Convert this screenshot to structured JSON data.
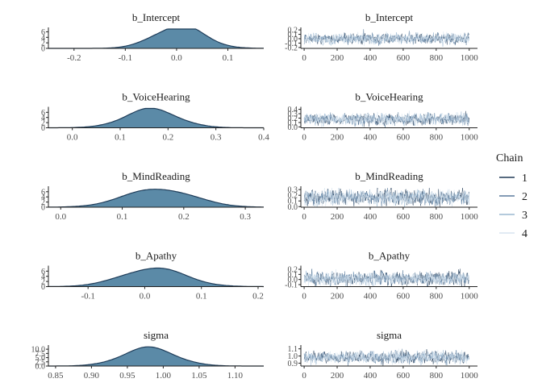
{
  "legend": {
    "title": "Chain",
    "items": [
      {
        "label": "1",
        "color": "#203a56"
      },
      {
        "label": "2",
        "color": "#5b7c9d"
      },
      {
        "label": "3",
        "color": "#9bb8d1"
      },
      {
        "label": "4",
        "color": "#d7e4ef"
      }
    ]
  },
  "colors": {
    "density_fill": "#5b8aa7",
    "density_line": "#1f3d5a",
    "axis": "#222222"
  },
  "chart_data": [
    {
      "type": "area",
      "panel": "density",
      "title": "b_Intercept",
      "mean": 0.005,
      "sd": 0.048,
      "xlim": [
        -0.25,
        0.17
      ],
      "xticks": [
        -0.2,
        -0.1,
        0.0,
        0.1
      ],
      "xtick_labels": [
        "-0.2",
        "-0.1",
        "0.0",
        "0.1"
      ],
      "ylim": [
        0,
        7
      ],
      "yticks": [
        0,
        2,
        4,
        6
      ],
      "ytick_labels": [
        "0",
        "2",
        "4",
        "6"
      ]
    },
    {
      "type": "line",
      "panel": "trace",
      "title": "b_Intercept",
      "center": 0.0,
      "spread": 0.055,
      "xlim": [
        -20,
        1050
      ],
      "xticks": [
        0,
        200,
        400,
        600,
        800,
        1000
      ],
      "xtick_labels": [
        "0",
        "200",
        "400",
        "600",
        "800",
        "1000"
      ],
      "ylim": [
        -0.22,
        0.22
      ],
      "yticks": [
        -0.2,
        -0.1,
        0.0,
        0.1,
        0.2
      ],
      "ytick_labels": [
        "-0.2",
        "-0.1",
        "0.0",
        "0.1",
        "0.2"
      ]
    },
    {
      "type": "area",
      "panel": "density",
      "title": "b_VoiceHearing",
      "mean": 0.165,
      "sd": 0.055,
      "xlim": [
        -0.05,
        0.4
      ],
      "xticks": [
        0.0,
        0.1,
        0.2,
        0.3,
        0.4
      ],
      "xtick_labels": [
        "0.0",
        "0.1",
        "0.2",
        "0.3",
        "0.4"
      ],
      "ylim": [
        0,
        7.5
      ],
      "yticks": [
        0,
        2,
        4,
        6
      ],
      "ytick_labels": [
        "0",
        "2",
        "4",
        "6"
      ]
    },
    {
      "type": "line",
      "panel": "trace",
      "title": "b_VoiceHearing",
      "center": 0.17,
      "spread": 0.06,
      "xlim": [
        -20,
        1050
      ],
      "xticks": [
        0,
        200,
        400,
        600,
        800,
        1000
      ],
      "xtick_labels": [
        "0",
        "200",
        "400",
        "600",
        "800",
        "1000"
      ],
      "ylim": [
        -0.02,
        0.42
      ],
      "yticks": [
        0.0,
        0.1,
        0.2,
        0.3,
        0.4
      ],
      "ytick_labels": [
        "0.0",
        "0.1",
        "0.2",
        "0.3",
        "0.4"
      ]
    },
    {
      "type": "area",
      "panel": "density",
      "title": "b_MindReading",
      "mean": 0.16,
      "sd": 0.055,
      "xlim": [
        -0.02,
        0.33
      ],
      "xticks": [
        0.0,
        0.1,
        0.2,
        0.3
      ],
      "xtick_labels": [
        "0.0",
        "0.1",
        "0.2",
        "0.3"
      ],
      "ylim": [
        0,
        7.5
      ],
      "yticks": [
        0,
        2,
        4,
        6
      ],
      "ytick_labels": [
        "0",
        "2",
        "4",
        "6"
      ]
    },
    {
      "type": "line",
      "panel": "trace",
      "title": "b_MindReading",
      "center": 0.16,
      "spread": 0.06,
      "xlim": [
        -20,
        1050
      ],
      "xticks": [
        0,
        200,
        400,
        600,
        800,
        1000
      ],
      "xtick_labels": [
        "0",
        "200",
        "400",
        "600",
        "800",
        "1000"
      ],
      "ylim": [
        -0.01,
        0.33
      ],
      "yticks": [
        0.0,
        0.1,
        0.2,
        0.3
      ],
      "ytick_labels": [
        "0.0",
        "0.1",
        "0.2",
        "0.3"
      ]
    },
    {
      "type": "area",
      "panel": "density",
      "title": "b_Apathy",
      "mean": 0.015,
      "sd": 0.055,
      "xlim": [
        -0.17,
        0.21
      ],
      "xticks": [
        -0.1,
        0.0,
        0.1,
        0.2
      ],
      "xtick_labels": [
        "-0.1",
        "0.0",
        "0.1",
        "0.2"
      ],
      "ylim": [
        0,
        7.5
      ],
      "yticks": [
        0,
        2,
        4,
        6
      ],
      "ytick_labels": [
        "0",
        "2",
        "4",
        "6"
      ]
    },
    {
      "type": "line",
      "panel": "trace",
      "title": "b_Apathy",
      "center": 0.015,
      "spread": 0.06,
      "xlim": [
        -20,
        1050
      ],
      "xticks": [
        0,
        200,
        400,
        600,
        800,
        1000
      ],
      "xtick_labels": [
        "0",
        "200",
        "400",
        "600",
        "800",
        "1000"
      ],
      "ylim": [
        -0.14,
        0.24
      ],
      "yticks": [
        -0.1,
        0.0,
        0.1,
        0.2
      ],
      "ytick_labels": [
        "-0.1",
        "0.0",
        "0.1",
        "0.2"
      ]
    },
    {
      "type": "area",
      "panel": "density",
      "title": "sigma",
      "mean": 0.98,
      "sd": 0.037,
      "xlim": [
        0.84,
        1.14
      ],
      "xticks": [
        0.85,
        0.9,
        0.95,
        1.0,
        1.05,
        1.1
      ],
      "xtick_labels": [
        "0.85",
        "0.90",
        "0.95",
        "1.00",
        "1.05",
        "1.10"
      ],
      "ylim": [
        0,
        11.5
      ],
      "yticks": [
        0.0,
        2.5,
        5.0,
        7.5,
        10.0
      ],
      "ytick_labels": [
        "0.0",
        "2.5",
        "5.0",
        "7.5",
        "10.0"
      ]
    },
    {
      "type": "line",
      "panel": "trace",
      "title": "sigma",
      "center": 0.98,
      "spread": 0.038,
      "xlim": [
        -20,
        1050
      ],
      "xticks": [
        0,
        200,
        400,
        600,
        800,
        1000
      ],
      "xtick_labels": [
        "0",
        "200",
        "400",
        "600",
        "800",
        "1000"
      ],
      "ylim": [
        0.86,
        1.13
      ],
      "yticks": [
        0.9,
        1.0,
        1.1
      ],
      "ytick_labels": [
        "0.9",
        "1.0",
        "1.1"
      ]
    }
  ]
}
